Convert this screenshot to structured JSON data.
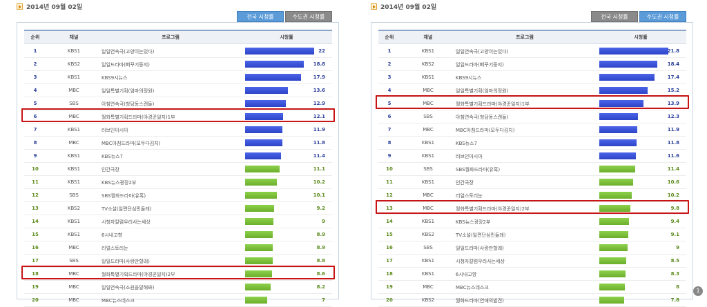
{
  "left": {
    "date": "2014년 09월 02일",
    "tabs": [
      {
        "label": "전국 시청률",
        "active": true
      },
      {
        "label": "수도권 시청률",
        "active": false
      }
    ],
    "headers": {
      "rank": "순위",
      "channel": "채널",
      "program": "프로그램",
      "rating": "시청률"
    },
    "max_rating": 22,
    "rows": [
      {
        "rank": "1",
        "channel": "KBS1",
        "program": "일일연속극(고양이는있다)",
        "rating": "22",
        "rating_num": 22,
        "color": "blue"
      },
      {
        "rank": "2",
        "channel": "KBS2",
        "program": "일일드라마(뻐꾸기둥지)",
        "rating": "18.8",
        "rating_num": 18.8,
        "color": "blue"
      },
      {
        "rank": "3",
        "channel": "KBS1",
        "program": "KBS9시뉴스",
        "rating": "17.9",
        "rating_num": 17.9,
        "color": "blue"
      },
      {
        "rank": "4",
        "channel": "MBC",
        "program": "일일특별기획(엄마의정원)",
        "rating": "13.6",
        "rating_num": 13.6,
        "color": "blue"
      },
      {
        "rank": "5",
        "channel": "SBS",
        "program": "아침연속극(청담동스캔들)",
        "rating": "12.9",
        "rating_num": 12.9,
        "color": "blue"
      },
      {
        "rank": "6",
        "channel": "MBC",
        "program": "월화특별기획드라마(야경꾼일지)1부",
        "rating": "12.1",
        "rating_num": 12.1,
        "color": "blue"
      },
      {
        "rank": "7",
        "channel": "KBS1",
        "program": "러브인아시아",
        "rating": "11.9",
        "rating_num": 11.9,
        "color": "blue"
      },
      {
        "rank": "8",
        "channel": "MBC",
        "program": "MBC아침드라마(모두다김치)",
        "rating": "11.8",
        "rating_num": 11.8,
        "color": "blue"
      },
      {
        "rank": "9",
        "channel": "KBS1",
        "program": "KBS뉴스7",
        "rating": "11.4",
        "rating_num": 11.4,
        "color": "blue"
      },
      {
        "rank": "10",
        "channel": "KBS1",
        "program": "인간극장",
        "rating": "11.1",
        "rating_num": 11.1,
        "color": "green"
      },
      {
        "rank": "11",
        "channel": "KBS1",
        "program": "KBS뉴스광장2부",
        "rating": "10.2",
        "rating_num": 10.2,
        "color": "green"
      },
      {
        "rank": "12",
        "channel": "SBS",
        "program": "SBS월화드라마(유혹)",
        "rating": "10.1",
        "rating_num": 10.1,
        "color": "green"
      },
      {
        "rank": "13",
        "channel": "KBS2",
        "program": "TV소설(일편단심민들레)",
        "rating": "9.2",
        "rating_num": 9.2,
        "color": "green"
      },
      {
        "rank": "14",
        "channel": "KBS1",
        "program": "시청자칼럼우리사는세상",
        "rating": "9",
        "rating_num": 9,
        "color": "green"
      },
      {
        "rank": "15",
        "channel": "KBS1",
        "program": "6시내고향",
        "rating": "8.9",
        "rating_num": 8.9,
        "color": "green"
      },
      {
        "rank": "16",
        "channel": "MBC",
        "program": "리얼스토리눈",
        "rating": "8.9",
        "rating_num": 8.9,
        "color": "green"
      },
      {
        "rank": "17",
        "channel": "SBS",
        "program": "일일드라마(사랑만할래)",
        "rating": "8.8",
        "rating_num": 8.8,
        "color": "green"
      },
      {
        "rank": "18",
        "channel": "MBC",
        "program": "월화특별기획드라마(야경꾼일지)2부",
        "rating": "8.6",
        "rating_num": 8.6,
        "color": "green"
      },
      {
        "rank": "19",
        "channel": "MBC",
        "program": "일일연속극(소원을말해봐)",
        "rating": "8.2",
        "rating_num": 8.2,
        "color": "green"
      },
      {
        "rank": "20",
        "channel": "MBC",
        "program": "MBC뉴스데스크",
        "rating": "7",
        "rating_num": 7,
        "color": "green"
      }
    ],
    "highlighted_ranks": [
      "6",
      "18"
    ]
  },
  "right": {
    "date": "2014년 09월 02일",
    "tabs": [
      {
        "label": "전국 시청률",
        "active": false
      },
      {
        "label": "수도권 시청률",
        "active": true
      }
    ],
    "headers": {
      "rank": "순위",
      "channel": "채널",
      "program": "프로그램",
      "rating": "시청률"
    },
    "max_rating": 21.8,
    "rows": [
      {
        "rank": "1",
        "channel": "KBS1",
        "program": "일일연속극(고양이는있다)",
        "rating": "21.8",
        "rating_num": 21.8,
        "color": "blue"
      },
      {
        "rank": "2",
        "channel": "KBS2",
        "program": "일일드라마(뻐꾸기둥지)",
        "rating": "18.4",
        "rating_num": 18.4,
        "color": "blue"
      },
      {
        "rank": "3",
        "channel": "KBS1",
        "program": "KBS9시뉴스",
        "rating": "17.4",
        "rating_num": 17.4,
        "color": "blue"
      },
      {
        "rank": "4",
        "channel": "MBC",
        "program": "일일특별기획(엄마의정원)",
        "rating": "15.2",
        "rating_num": 15.2,
        "color": "blue"
      },
      {
        "rank": "5",
        "channel": "MBC",
        "program": "월화특별기획드라마(야경꾼일지)1부",
        "rating": "13.9",
        "rating_num": 13.9,
        "color": "blue"
      },
      {
        "rank": "6",
        "channel": "SBS",
        "program": "아침연속극(청담동스캔들)",
        "rating": "12.3",
        "rating_num": 12.3,
        "color": "blue"
      },
      {
        "rank": "7",
        "channel": "MBC",
        "program": "MBC아침드라마(모두다김치)",
        "rating": "11.9",
        "rating_num": 11.9,
        "color": "blue"
      },
      {
        "rank": "8",
        "channel": "KBS1",
        "program": "KBS뉴스7",
        "rating": "11.8",
        "rating_num": 11.8,
        "color": "blue"
      },
      {
        "rank": "9",
        "channel": "KBS1",
        "program": "러브인아시아",
        "rating": "11.6",
        "rating_num": 11.6,
        "color": "blue"
      },
      {
        "rank": "10",
        "channel": "SBS",
        "program": "SBS월화드라마(유혹)",
        "rating": "11.4",
        "rating_num": 11.4,
        "color": "green"
      },
      {
        "rank": "11",
        "channel": "KBS1",
        "program": "인간극장",
        "rating": "10.6",
        "rating_num": 10.6,
        "color": "green"
      },
      {
        "rank": "12",
        "channel": "MBC",
        "program": "리얼스토리눈",
        "rating": "10.2",
        "rating_num": 10.2,
        "color": "green"
      },
      {
        "rank": "13",
        "channel": "MBC",
        "program": "월화특별기획드라마(야경꾼일지)2부",
        "rating": "9.8",
        "rating_num": 9.8,
        "color": "green"
      },
      {
        "rank": "14",
        "channel": "KBS1",
        "program": "KBS뉴스광장2부",
        "rating": "9.4",
        "rating_num": 9.4,
        "color": "green"
      },
      {
        "rank": "15",
        "channel": "KBS2",
        "program": "TV소설(일편단심민들레)",
        "rating": "9.1",
        "rating_num": 9.1,
        "color": "green"
      },
      {
        "rank": "16",
        "channel": "SBS",
        "program": "일일드라마(사랑만할래)",
        "rating": "9",
        "rating_num": 9,
        "color": "green"
      },
      {
        "rank": "17",
        "channel": "KBS1",
        "program": "시청자칼럼우리사는세상",
        "rating": "8.5",
        "rating_num": 8.5,
        "color": "green"
      },
      {
        "rank": "18",
        "channel": "KBS1",
        "program": "6시내고향",
        "rating": "8.3",
        "rating_num": 8.3,
        "color": "green"
      },
      {
        "rank": "19",
        "channel": "MBC",
        "program": "MBC뉴스데스크",
        "rating": "8",
        "rating_num": 8,
        "color": "green"
      },
      {
        "rank": "20",
        "channel": "KBS2",
        "program": "월화드라마(연애의발견)",
        "rating": "7.8",
        "rating_num": 7.8,
        "color": "green"
      }
    ],
    "highlighted_ranks": [
      "5",
      "13"
    ]
  },
  "page_badge": "1",
  "colors": {
    "highlight": "#c81414",
    "blue_bar": "#3a52d8",
    "green_bar": "#7cc23a",
    "active_tab": "#5b9bd8",
    "inactive_tab": "#8a8a8a"
  }
}
